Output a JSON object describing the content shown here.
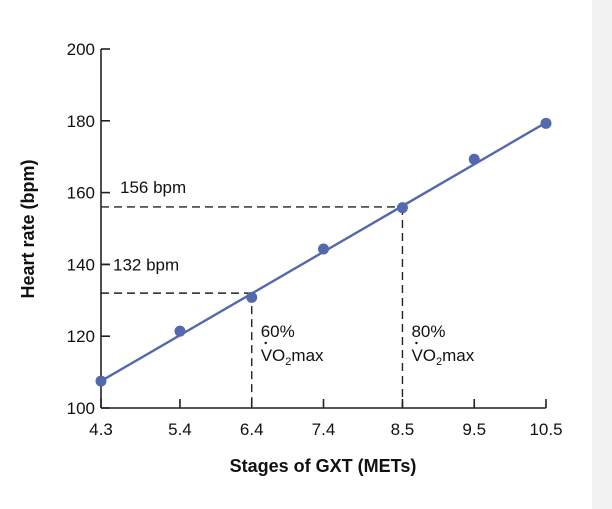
{
  "chart_data": {
    "type": "line",
    "xlabel": "Stages of GXT (METs)",
    "ylabel": "Heart rate (bpm)",
    "xlim": [
      4.3,
      10.5
    ],
    "ylim": [
      100,
      200
    ],
    "x_ticks": [
      "4.3",
      "5.4",
      "6.4",
      "7.4",
      "8.5",
      "9.5",
      "10.5"
    ],
    "y_ticks": [
      "100",
      "120",
      "140",
      "160",
      "180",
      "200"
    ],
    "grid": false,
    "points": [
      {
        "x": 4.3,
        "y": 107.5
      },
      {
        "x": 5.4,
        "y": 121.4
      },
      {
        "x": 6.4,
        "y": 130.8
      },
      {
        "x": 7.4,
        "y": 144.3
      },
      {
        "x": 8.5,
        "y": 155.8
      },
      {
        "x": 9.5,
        "y": 169.3
      },
      {
        "x": 10.5,
        "y": 179.3
      }
    ],
    "fit_line": [
      {
        "x": 4.3,
        "y": 107.5
      },
      {
        "x": 10.5,
        "y": 179.5
      }
    ],
    "color": "#5468ae",
    "reference_lines": [
      {
        "x": 6.4,
        "y": 132,
        "hr_label": "132 bpm",
        "pct_label": "60%",
        "vo2_label": "VO",
        "vo2_sub": "2",
        "vo2_suffix": "max"
      },
      {
        "x": 8.5,
        "y": 156,
        "hr_label": "156 bpm",
        "pct_label": "80%",
        "vo2_label": "VO",
        "vo2_sub": "2",
        "vo2_suffix": "max"
      }
    ]
  }
}
